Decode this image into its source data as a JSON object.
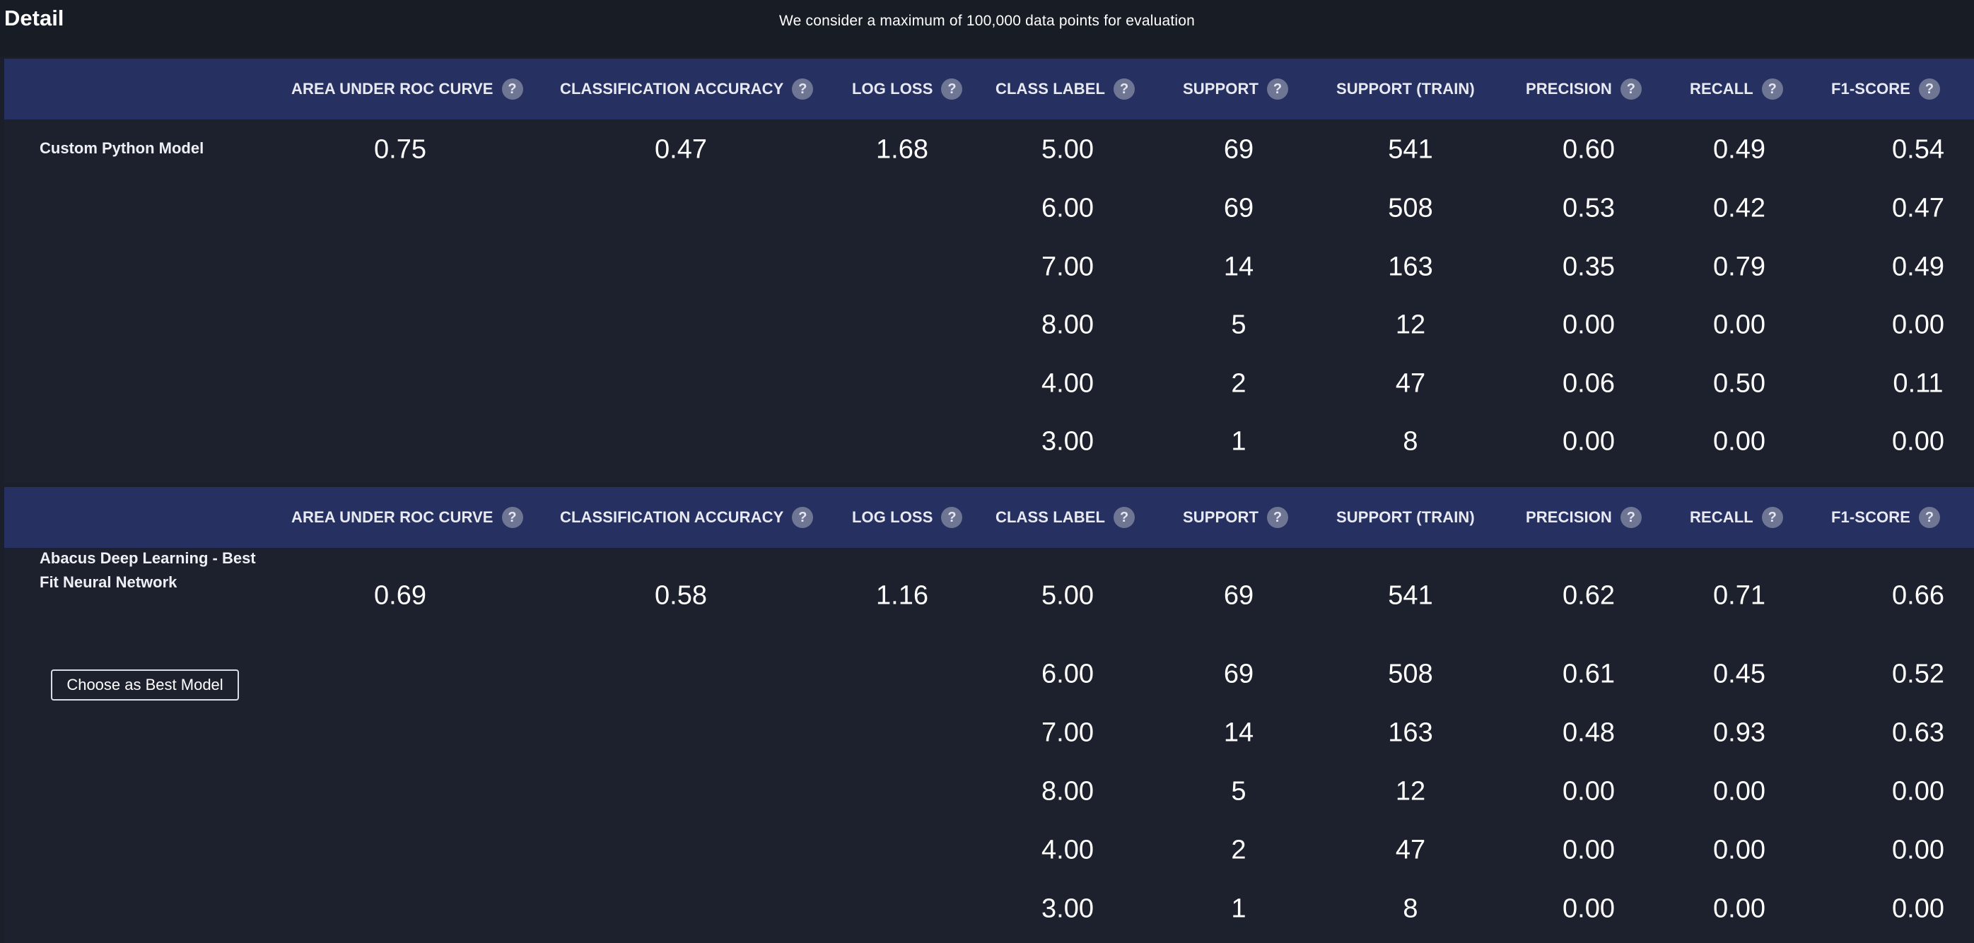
{
  "header": {
    "title": "Detail",
    "notice": "We consider a maximum of 100,000 data points for evaluation"
  },
  "columns": [
    {
      "key": "auc",
      "label": "AREA UNDER ROC CURVE",
      "help": true
    },
    {
      "key": "accuracy",
      "label": "CLASSIFICATION ACCURACY",
      "help": true
    },
    {
      "key": "logloss",
      "label": "LOG LOSS",
      "help": true
    },
    {
      "key": "class_label",
      "label": "CLASS LABEL",
      "help": true
    },
    {
      "key": "support",
      "label": "SUPPORT",
      "help": true
    },
    {
      "key": "support_train",
      "label": "SUPPORT (TRAIN)",
      "help": false
    },
    {
      "key": "precision",
      "label": "PRECISION",
      "help": true
    },
    {
      "key": "recall",
      "label": "RECALL",
      "help": true
    },
    {
      "key": "f1",
      "label": "F1-SCORE",
      "help": true
    }
  ],
  "help_glyph": "?",
  "models": [
    {
      "name": "Custom Python Model",
      "auc": "0.75",
      "accuracy": "0.47",
      "logloss": "1.68",
      "action_label": "",
      "rows": [
        {
          "class_label": "5.00",
          "support": "69",
          "support_train": "541",
          "precision": "0.60",
          "recall": "0.49",
          "f1": "0.54"
        },
        {
          "class_label": "6.00",
          "support": "69",
          "support_train": "508",
          "precision": "0.53",
          "recall": "0.42",
          "f1": "0.47"
        },
        {
          "class_label": "7.00",
          "support": "14",
          "support_train": "163",
          "precision": "0.35",
          "recall": "0.79",
          "f1": "0.49"
        },
        {
          "class_label": "8.00",
          "support": "5",
          "support_train": "12",
          "precision": "0.00",
          "recall": "0.00",
          "f1": "0.00"
        },
        {
          "class_label": "4.00",
          "support": "2",
          "support_train": "47",
          "precision": "0.06",
          "recall": "0.50",
          "f1": "0.11"
        },
        {
          "class_label": "3.00",
          "support": "1",
          "support_train": "8",
          "precision": "0.00",
          "recall": "0.00",
          "f1": "0.00"
        }
      ]
    },
    {
      "name": "Abacus Deep Learning - Best Fit Neural Network",
      "auc": "0.69",
      "accuracy": "0.58",
      "logloss": "1.16",
      "action_label": "Choose as Best Model",
      "rows": [
        {
          "class_label": "5.00",
          "support": "69",
          "support_train": "541",
          "precision": "0.62",
          "recall": "0.71",
          "f1": "0.66"
        },
        {
          "class_label": "6.00",
          "support": "69",
          "support_train": "508",
          "precision": "0.61",
          "recall": "0.45",
          "f1": "0.52"
        },
        {
          "class_label": "7.00",
          "support": "14",
          "support_train": "163",
          "precision": "0.48",
          "recall": "0.93",
          "f1": "0.63"
        },
        {
          "class_label": "8.00",
          "support": "5",
          "support_train": "12",
          "precision": "0.00",
          "recall": "0.00",
          "f1": "0.00"
        },
        {
          "class_label": "4.00",
          "support": "2",
          "support_train": "47",
          "precision": "0.00",
          "recall": "0.00",
          "f1": "0.00"
        },
        {
          "class_label": "3.00",
          "support": "1",
          "support_train": "8",
          "precision": "0.00",
          "recall": "0.00",
          "f1": "0.00"
        }
      ]
    }
  ]
}
